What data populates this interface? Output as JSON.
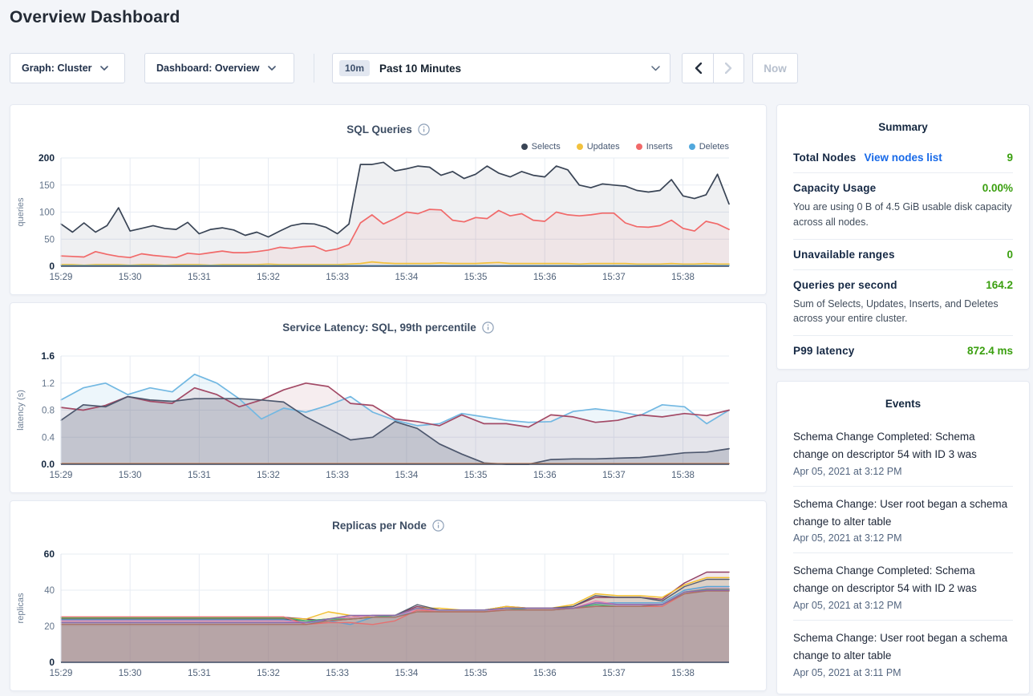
{
  "page": {
    "title": "Overview Dashboard"
  },
  "toolbar": {
    "graph_dropdown": "Graph: Cluster",
    "dashboard_dropdown": "Dashboard: Overview",
    "time_badge": "10m",
    "time_label": "Past 10 Minutes",
    "prev_label": "previous time window",
    "next_label": "next time window",
    "now_button": "Now"
  },
  "colors": {
    "accent_green": "#3a9f0f",
    "link_blue": "#1769e8",
    "selects_navy": "#394455",
    "updates_yellow": "#f2c23e",
    "inserts_red": "#f16969",
    "deletes_blue": "#51a8dd"
  },
  "summary": {
    "title": "Summary",
    "rows": [
      {
        "label": "Total Nodes",
        "link": "View nodes list",
        "value": "9"
      },
      {
        "label": "Capacity Usage",
        "value": "0.00%",
        "sub": "You are using 0 B of 4.5 GiB usable disk capacity across all nodes."
      },
      {
        "label": "Unavailable ranges",
        "value": "0"
      },
      {
        "label": "Queries per second",
        "value": "164.2",
        "sub": "Sum of Selects, Updates, Inserts, and Deletes across your entire cluster."
      },
      {
        "label": "P99 latency",
        "value": "872.4 ms"
      }
    ]
  },
  "events": {
    "title": "Events",
    "items": [
      {
        "message": "Schema Change Completed: Schema change on descriptor 54 with ID 3 was",
        "time": "Apr 05, 2021 at 3:12 PM"
      },
      {
        "message": "Schema Change: User root began a schema change to alter table",
        "time": "Apr 05, 2021 at 3:12 PM"
      },
      {
        "message": "Schema Change Completed: Schema change on descriptor 54 with ID 2 was",
        "time": "Apr 05, 2021 at 3:12 PM"
      },
      {
        "message": "Schema Change: User root began a schema change to alter table",
        "time": "Apr 05, 2021 at 3:11 PM"
      }
    ]
  },
  "chart_data": [
    {
      "type": "area",
      "title": "SQL Queries",
      "ylabel": "queries",
      "ylim": [
        0,
        200
      ],
      "yticks": [
        0,
        50,
        100,
        150,
        200
      ],
      "ytick_labels": [
        "0",
        "50",
        "100",
        "150",
        "200"
      ],
      "x_tick_labels": [
        "15:29",
        "15:30",
        "15:31",
        "15:32",
        "15:33",
        "15:34",
        "15:35",
        "15:36",
        "15:37",
        "15:38"
      ],
      "duration_s": 580,
      "tick_every_s": 60,
      "grid": true,
      "legend_position": "top-right",
      "series": [
        {
          "name": "Selects",
          "color": "#394455",
          "fill_opacity": 0.08,
          "values": [
            78,
            63,
            80,
            63,
            75,
            108,
            65,
            70,
            75,
            70,
            68,
            81,
            60,
            68,
            71,
            67,
            57,
            63,
            54,
            65,
            75,
            79,
            78,
            72,
            60,
            78,
            188,
            188,
            192,
            176,
            180,
            185,
            183,
            168,
            175,
            162,
            170,
            185,
            172,
            165,
            175,
            168,
            165,
            185,
            178,
            150,
            145,
            152,
            150,
            148,
            140,
            137,
            140,
            160,
            130,
            125,
            132,
            170,
            115
          ]
        },
        {
          "name": "Updates",
          "color": "#f2c23e",
          "fill_opacity": 0.1,
          "values": [
            3,
            3,
            2,
            3,
            3,
            3,
            2,
            3,
            3,
            2,
            3,
            3,
            3,
            2,
            3,
            3,
            3,
            3,
            4,
            3,
            3,
            3,
            3,
            3,
            3,
            4,
            5,
            8,
            6,
            5,
            5,
            5,
            5,
            6,
            5,
            5,
            5,
            6,
            7,
            5,
            5,
            5,
            5,
            5,
            5,
            4,
            5,
            5,
            5,
            5,
            4,
            4,
            4,
            5,
            4,
            4,
            5,
            4,
            4
          ]
        },
        {
          "name": "Inserts",
          "color": "#f16969",
          "fill_opacity": 0.08,
          "values": [
            19,
            18,
            17,
            27,
            22,
            18,
            16,
            23,
            20,
            18,
            16,
            24,
            22,
            25,
            28,
            25,
            25,
            27,
            30,
            35,
            33,
            36,
            37,
            28,
            32,
            40,
            80,
            95,
            78,
            88,
            100,
            97,
            105,
            104,
            85,
            82,
            90,
            88,
            103,
            93,
            97,
            85,
            83,
            100,
            95,
            93,
            95,
            98,
            98,
            80,
            73,
            72,
            75,
            85,
            70,
            65,
            83,
            78,
            68
          ]
        },
        {
          "name": "Deletes",
          "color": "#51a8dd",
          "fill_opacity": 0.1,
          "values": [
            1,
            1,
            1,
            1,
            1,
            1,
            1,
            1,
            1,
            1,
            1,
            1,
            1,
            1,
            1,
            1,
            1,
            1,
            1,
            1,
            1,
            1,
            1,
            1,
            1,
            1,
            1,
            1,
            1,
            1,
            1,
            1,
            1,
            1,
            1,
            1,
            1,
            1,
            1,
            1,
            1,
            1,
            1,
            1,
            1,
            1,
            1,
            1,
            1,
            1,
            1,
            1,
            1,
            1,
            1,
            1,
            1,
            1,
            1
          ]
        }
      ]
    },
    {
      "type": "area",
      "title": "Service Latency: SQL, 99th percentile",
      "ylabel": "latency (s)",
      "ylim": [
        0,
        1.6
      ],
      "yticks": [
        0,
        0.4,
        0.8,
        1.2,
        1.6
      ],
      "ytick_labels": [
        "0.0",
        "0.4",
        "0.8",
        "1.2",
        "1.6"
      ],
      "x_tick_labels": [
        "15:29",
        "15:30",
        "15:31",
        "15:32",
        "15:33",
        "15:34",
        "15:35",
        "15:36",
        "15:37",
        "15:38"
      ],
      "duration_s": 580,
      "tick_every_s": 60,
      "grid": true,
      "legend_position": "none",
      "series": [
        {
          "color": "#72b8e2",
          "fill_opacity": 0.13,
          "values": [
            0.95,
            1.13,
            1.2,
            1.03,
            1.13,
            1.07,
            1.33,
            1.2,
            0.97,
            0.67,
            0.83,
            0.77,
            0.87,
            1.0,
            0.77,
            0.65,
            0.57,
            0.6,
            0.75,
            0.7,
            0.65,
            0.62,
            0.63,
            0.78,
            0.82,
            0.78,
            0.72,
            0.88,
            0.85,
            0.6,
            0.8
          ]
        },
        {
          "color": "#a34a66",
          "fill_opacity": 0.1,
          "values": [
            0.84,
            0.8,
            0.87,
            1.0,
            0.93,
            0.9,
            1.13,
            1.03,
            0.85,
            0.95,
            1.1,
            1.2,
            1.15,
            0.9,
            0.87,
            0.67,
            0.63,
            0.57,
            0.73,
            0.6,
            0.6,
            0.55,
            0.73,
            0.7,
            0.62,
            0.65,
            0.73,
            0.7,
            0.75,
            0.72,
            0.8
          ]
        },
        {
          "color": "#4e586e",
          "fill_opacity": 0.22,
          "values": [
            0.65,
            0.88,
            0.85,
            1.0,
            0.95,
            0.93,
            0.97,
            0.97,
            0.97,
            0.95,
            0.92,
            0.7,
            0.53,
            0.36,
            0.4,
            0.63,
            0.53,
            0.3,
            0.15,
            0.02,
            0.0,
            0.0,
            0.07,
            0.08,
            0.08,
            0.09,
            0.1,
            0.13,
            0.17,
            0.18,
            0.23
          ]
        },
        {
          "color": "#cb7f4e",
          "fill_opacity": 0,
          "values": [
            0.01,
            0.01,
            0.01,
            0.01,
            0.01,
            0.01,
            0.01,
            0.01,
            0.01,
            0.01,
            0.01,
            0.01,
            0.01,
            0.01,
            0.01,
            0.01,
            0.01,
            0.01,
            0.01,
            0.01,
            0.01,
            0.01,
            0.01,
            0.01,
            0.01,
            0.01,
            0.01,
            0.01,
            0.01,
            0.01,
            0.01
          ]
        }
      ]
    },
    {
      "type": "area",
      "title": "Replicas per Node",
      "ylabel": "replicas",
      "ylim": [
        0,
        60
      ],
      "yticks": [
        0,
        20,
        40,
        60
      ],
      "ytick_labels": [
        "0",
        "20",
        "40",
        "60"
      ],
      "x_tick_labels": [
        "15:29",
        "15:30",
        "15:31",
        "15:32",
        "15:33",
        "15:34",
        "15:35",
        "15:36",
        "15:37",
        "15:38"
      ],
      "duration_s": 580,
      "tick_every_s": 60,
      "grid": true,
      "legend_position": "none",
      "series": [
        {
          "color": "#903d62",
          "fill_opacity": 0.12,
          "values": [
            25,
            25,
            25,
            25,
            25,
            25,
            25,
            25,
            25,
            25,
            25,
            24,
            23,
            24,
            25,
            26,
            31,
            29,
            29,
            29,
            31,
            30,
            30,
            31,
            36,
            36,
            36,
            35,
            44,
            50,
            50
          ]
        },
        {
          "color": "#f2be2c",
          "fill_opacity": 0.12,
          "values": [
            24.5,
            24.5,
            24.5,
            24.5,
            24.5,
            24.5,
            24.5,
            24.5,
            24.5,
            24.5,
            24.5,
            24,
            28,
            26,
            25,
            26,
            30,
            30,
            29,
            29,
            31,
            30,
            30,
            32,
            38,
            37,
            37,
            36,
            43,
            47,
            47
          ]
        },
        {
          "color": "#555d6e",
          "fill_opacity": 0.12,
          "values": [
            24,
            24,
            24,
            24,
            24,
            24,
            24,
            24,
            24,
            24,
            24,
            23,
            24,
            25,
            26,
            26,
            32,
            29,
            29,
            29,
            30,
            30,
            30,
            31,
            37,
            36,
            36,
            34,
            42,
            46,
            46
          ]
        },
        {
          "color": "#5aa3d6",
          "fill_opacity": 0.12,
          "values": [
            23.5,
            23.5,
            23.5,
            23.5,
            23.5,
            23.5,
            23.5,
            23.5,
            23.5,
            23.5,
            23.5,
            22,
            23,
            21,
            25,
            25,
            29,
            29,
            29,
            29,
            30,
            29,
            29,
            30,
            33,
            33,
            33,
            33,
            40,
            42,
            42
          ]
        },
        {
          "color": "#e886b4",
          "fill_opacity": 0.12,
          "values": [
            23,
            23,
            23,
            23,
            23,
            23,
            23,
            23,
            23,
            23,
            23,
            22,
            24,
            25,
            26,
            26,
            29,
            29,
            29,
            29,
            29,
            29,
            29,
            30,
            34,
            32,
            32,
            32,
            39,
            41,
            41
          ]
        },
        {
          "color": "#44b56f",
          "fill_opacity": 0.12,
          "values": [
            24.8,
            24.8,
            24.8,
            24.8,
            24.8,
            24.8,
            24.8,
            24.8,
            24.8,
            24.8,
            24.8,
            23,
            24,
            24,
            25,
            26,
            30,
            29,
            29,
            29,
            30,
            29,
            29,
            30,
            32,
            31,
            31,
            32,
            39,
            40.5,
            40.5
          ]
        },
        {
          "color": "#e57070",
          "fill_opacity": 0.12,
          "values": [
            25.2,
            25.2,
            25.2,
            25.2,
            25.2,
            25.2,
            25.2,
            25.2,
            25.2,
            25.2,
            25.2,
            21,
            22,
            22,
            21,
            23,
            29,
            28,
            28,
            28,
            29,
            29,
            29,
            30,
            31,
            31,
            31,
            31,
            38,
            40,
            40
          ]
        },
        {
          "color": "#a87265",
          "fill_opacity": 0.12,
          "values": [
            21,
            21,
            21,
            21,
            21,
            21,
            21,
            21,
            21,
            21,
            21,
            21,
            23,
            24,
            25,
            25,
            28,
            28,
            28,
            28,
            29,
            29,
            29,
            30,
            31,
            31,
            31,
            32,
            38,
            39.5,
            39.5
          ]
        },
        {
          "color": "#8a68ad",
          "fill_opacity": 0.12,
          "values": [
            22,
            22,
            22,
            22,
            22,
            22,
            22,
            22,
            22,
            22,
            22,
            22,
            24,
            26,
            26,
            26,
            30,
            29,
            29,
            29,
            30,
            30,
            30,
            30,
            33,
            32,
            32,
            32,
            39,
            40,
            40
          ]
        }
      ]
    }
  ]
}
